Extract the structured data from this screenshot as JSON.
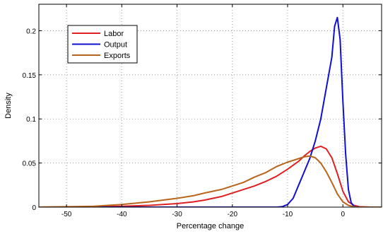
{
  "chart_data": {
    "type": "line",
    "title": "",
    "xlabel": "Percentage change",
    "ylabel": "Density",
    "xlim": [
      -55,
      7
    ],
    "ylim": [
      0,
      0.23
    ],
    "grid": true,
    "grid_style": "dotted",
    "x_ticks": [
      -50,
      -40,
      -30,
      -20,
      -10,
      0
    ],
    "y_ticks": [
      0,
      0.05,
      0.1,
      0.15,
      0.2
    ],
    "x_tick_labels": [
      "-50",
      "-40",
      "-30",
      "-20",
      "-10",
      "0"
    ],
    "y_tick_labels": [
      "0",
      "0.05",
      "0.1",
      "0.15",
      "0.2"
    ],
    "legend_position": "top-left",
    "series": [
      {
        "name": "Labor",
        "color": "#e02020",
        "points": [
          [
            -55,
            0
          ],
          [
            -45,
            0.0005
          ],
          [
            -40,
            0.001
          ],
          [
            -35,
            0.002
          ],
          [
            -30,
            0.004
          ],
          [
            -27,
            0.006
          ],
          [
            -25,
            0.008
          ],
          [
            -22,
            0.012
          ],
          [
            -20,
            0.016
          ],
          [
            -18,
            0.02
          ],
          [
            -16,
            0.024
          ],
          [
            -14,
            0.029
          ],
          [
            -12,
            0.035
          ],
          [
            -10,
            0.043
          ],
          [
            -8,
            0.052
          ],
          [
            -7,
            0.058
          ],
          [
            -6,
            0.063
          ],
          [
            -5,
            0.067
          ],
          [
            -4,
            0.069
          ],
          [
            -3,
            0.066
          ],
          [
            -2,
            0.056
          ],
          [
            -1,
            0.038
          ],
          [
            0,
            0.018
          ],
          [
            1,
            0.006
          ],
          [
            2,
            0.002
          ],
          [
            3,
            0.0005
          ],
          [
            5,
            0
          ],
          [
            7,
            0
          ]
        ]
      },
      {
        "name": "Output",
        "color": "#1010d0",
        "points": [
          [
            -55,
            0
          ],
          [
            -12,
            0
          ],
          [
            -11,
            0.0005
          ],
          [
            -10,
            0.003
          ],
          [
            -9,
            0.01
          ],
          [
            -8,
            0.025
          ],
          [
            -7,
            0.04
          ],
          [
            -6,
            0.055
          ],
          [
            -5,
            0.075
          ],
          [
            -4,
            0.1
          ],
          [
            -3,
            0.135
          ],
          [
            -2,
            0.17
          ],
          [
            -1.5,
            0.205
          ],
          [
            -1,
            0.215
          ],
          [
            -0.5,
            0.19
          ],
          [
            0,
            0.12
          ],
          [
            0.5,
            0.06
          ],
          [
            1,
            0.02
          ],
          [
            1.5,
            0.005
          ],
          [
            2,
            0.001
          ],
          [
            3,
            0
          ],
          [
            7,
            0
          ]
        ]
      },
      {
        "name": "Exports",
        "color": "#b8651b",
        "points": [
          [
            -55,
            0
          ],
          [
            -50,
            0.0005
          ],
          [
            -45,
            0.001
          ],
          [
            -40,
            0.003
          ],
          [
            -35,
            0.006
          ],
          [
            -30,
            0.01
          ],
          [
            -27,
            0.013
          ],
          [
            -25,
            0.016
          ],
          [
            -22,
            0.02
          ],
          [
            -20,
            0.024
          ],
          [
            -18,
            0.028
          ],
          [
            -16,
            0.034
          ],
          [
            -14,
            0.039
          ],
          [
            -12,
            0.046
          ],
          [
            -10,
            0.051
          ],
          [
            -8,
            0.055
          ],
          [
            -7,
            0.057
          ],
          [
            -6,
            0.058
          ],
          [
            -5,
            0.056
          ],
          [
            -4,
            0.05
          ],
          [
            -3,
            0.04
          ],
          [
            -2,
            0.028
          ],
          [
            -1,
            0.015
          ],
          [
            0,
            0.006
          ],
          [
            1,
            0.002
          ],
          [
            2,
            0.0005
          ],
          [
            3,
            0
          ],
          [
            7,
            0
          ]
        ]
      }
    ]
  }
}
